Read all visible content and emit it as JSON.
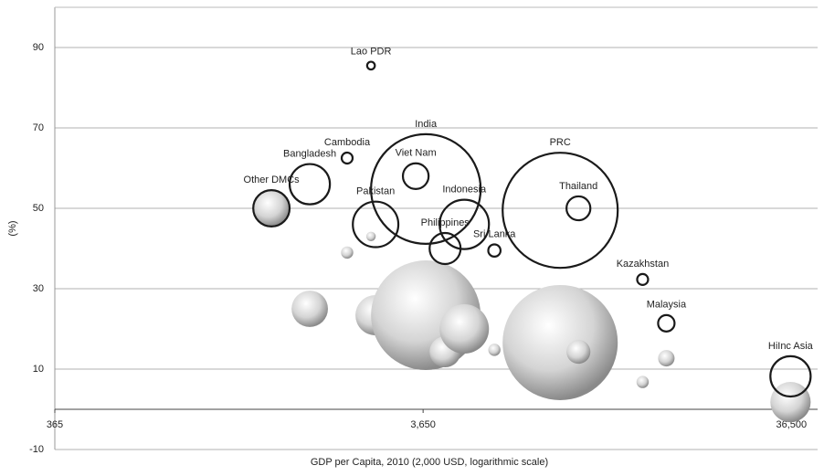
{
  "chart_data": {
    "type": "bubble",
    "x_label": "GDP per Capita, 2010 (2,000 USD, logarithmic scale)",
    "y_label": "(%)",
    "xlim": [
      365,
      43000
    ],
    "ylim": [
      -10,
      100
    ],
    "x_log": true,
    "xticks": [
      365,
      {
        "value": 3650,
        "label": "3,650"
      },
      {
        "value": 36500,
        "label": "36,500"
      }
    ],
    "yticks": [
      -10,
      10,
      30,
      50,
      70,
      90
    ],
    "grid": true,
    "series": [
      {
        "color": "#bbbbbb",
        "style": "shaded",
        "x": [
          1414,
          1797,
          2270,
          2635,
          2712,
          3713,
          4188,
          4722,
          5700,
          8600,
          9640,
          14400,
          16700,
          36300
        ],
        "values": [
          50,
          25,
          39,
          43,
          23.4,
          23.4,
          14.3,
          20,
          14.8,
          16.6,
          14.3,
          6.8,
          12.7,
          1.8
        ],
        "sizes": [
          44,
          44,
          5,
          3,
          54,
          400,
          32,
          81,
          5,
          441,
          19,
          5,
          9,
          54
        ]
      },
      {
        "color": "#1a1a1a",
        "style": "open",
        "labels": [
          "Lao PDR",
          "Cambodia",
          "Bangladesh",
          "Other DMCs",
          "Viet Nam",
          "India",
          "Pakistan",
          "Indonesia",
          "Philippines",
          "Sri Lanka",
          "PRC",
          "Thailand",
          "Kazakhstan",
          "Malaysia",
          "HiInc Asia"
        ],
        "x": [
          2635,
          2270,
          1797,
          1414,
          3486,
          3713,
          2712,
          4722,
          4188,
          5700,
          8600,
          9640,
          14400,
          16700,
          36300
        ],
        "values": [
          85.5,
          62.5,
          56,
          50,
          58,
          54.8,
          46,
          46,
          40,
          39.5,
          49.5,
          50,
          32.3,
          21.4,
          8.2
        ],
        "sizes": [
          2,
          4,
          54,
          44,
          22,
          400,
          69,
          81,
          32,
          5,
          441,
          19,
          4,
          9,
          54
        ]
      }
    ]
  }
}
